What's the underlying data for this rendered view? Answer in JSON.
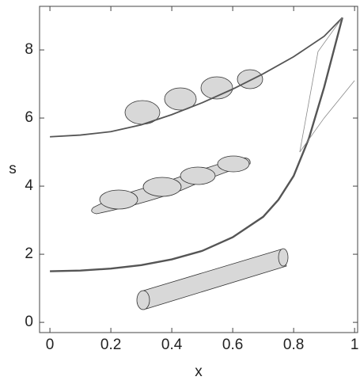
{
  "chart_data": {
    "type": "line",
    "xlabel": "x",
    "ylabel": "s",
    "xlim": [
      -0.034,
      1.01
    ],
    "ylim": [
      -0.3,
      9.28
    ],
    "xticks": [
      0,
      0.2,
      0.4,
      0.6,
      0.8,
      1
    ],
    "yticks": [
      0,
      2,
      4,
      6,
      8
    ],
    "series": [
      {
        "color": "#555555",
        "width": 1.8,
        "x": [
          0,
          0.1,
          0.2,
          0.3,
          0.4,
          0.5,
          0.6,
          0.7,
          0.8,
          0.9,
          0.96
        ],
        "values": [
          5.45,
          5.5,
          5.6,
          5.8,
          6.1,
          6.45,
          6.85,
          7.3,
          7.8,
          8.4,
          8.95
        ]
      },
      {
        "color": "#555555",
        "width": 2.4,
        "x": [
          0,
          0.1,
          0.2,
          0.3,
          0.4,
          0.5,
          0.6,
          0.7,
          0.75,
          0.8,
          0.85,
          0.9,
          0.96
        ],
        "values": [
          1.5,
          1.52,
          1.58,
          1.68,
          1.85,
          2.1,
          2.5,
          3.1,
          3.6,
          4.3,
          5.4,
          6.9,
          8.95
        ]
      },
      {
        "color": "#888888",
        "width": 0.8,
        "x": [
          0.82,
          0.9,
          1
        ],
        "values": [
          5.0,
          6.0,
          7.1
        ]
      },
      {
        "color": "#888888",
        "width": 0.8,
        "x": [
          0.82,
          0.88,
          0.96
        ],
        "values": [
          5.0,
          7.95,
          8.95
        ]
      }
    ]
  }
}
